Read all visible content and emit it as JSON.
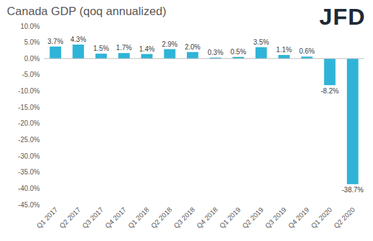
{
  "chart_data": {
    "type": "bar",
    "title": "Canada GDP (qoq annualized)",
    "annotations": [
      "JFD"
    ],
    "categories": [
      "Q1 2017",
      "Q2 2017",
      "Q3 2017",
      "Q4 2017",
      "Q1 2018",
      "Q2 2018",
      "Q3 2018",
      "Q4 2018",
      "Q1 2019",
      "Q2 2019",
      "Q3 2019",
      "Q4 2019",
      "Q1 2020",
      "Q2 2020"
    ],
    "values": [
      3.7,
      4.3,
      1.5,
      1.7,
      1.4,
      2.9,
      2.0,
      0.3,
      0.5,
      3.5,
      1.1,
      0.6,
      -8.2,
      -38.7
    ],
    "value_labels": [
      "3.7%",
      "4.3%",
      "1.5%",
      "1.7%",
      "1.4%",
      "2.9%",
      "2.0%",
      "0.3%",
      "0.5%",
      "3.5%",
      "1.1%",
      "0.6%",
      "-8.2%",
      "-38.7%"
    ],
    "color": "#2fb4d8",
    "ylim": [
      -45,
      10
    ],
    "yticks": [
      {
        "value": 10,
        "label": "10.0%"
      },
      {
        "value": 5,
        "label": "5.0%"
      },
      {
        "value": 0,
        "label": "0.0%"
      },
      {
        "value": -5,
        "label": "-5.0%"
      },
      {
        "value": -10,
        "label": "-10.0%"
      },
      {
        "value": -15,
        "label": "-15.0%"
      },
      {
        "value": -20,
        "label": "-20.0%"
      },
      {
        "value": -25,
        "label": "-25.0%"
      },
      {
        "value": -30,
        "label": "-30.0%"
      },
      {
        "value": -35,
        "label": "-35.0%"
      },
      {
        "value": -40,
        "label": "-40.0%"
      },
      {
        "value": -45,
        "label": "-45.0%"
      }
    ],
    "grid": false,
    "data_labels": true
  }
}
